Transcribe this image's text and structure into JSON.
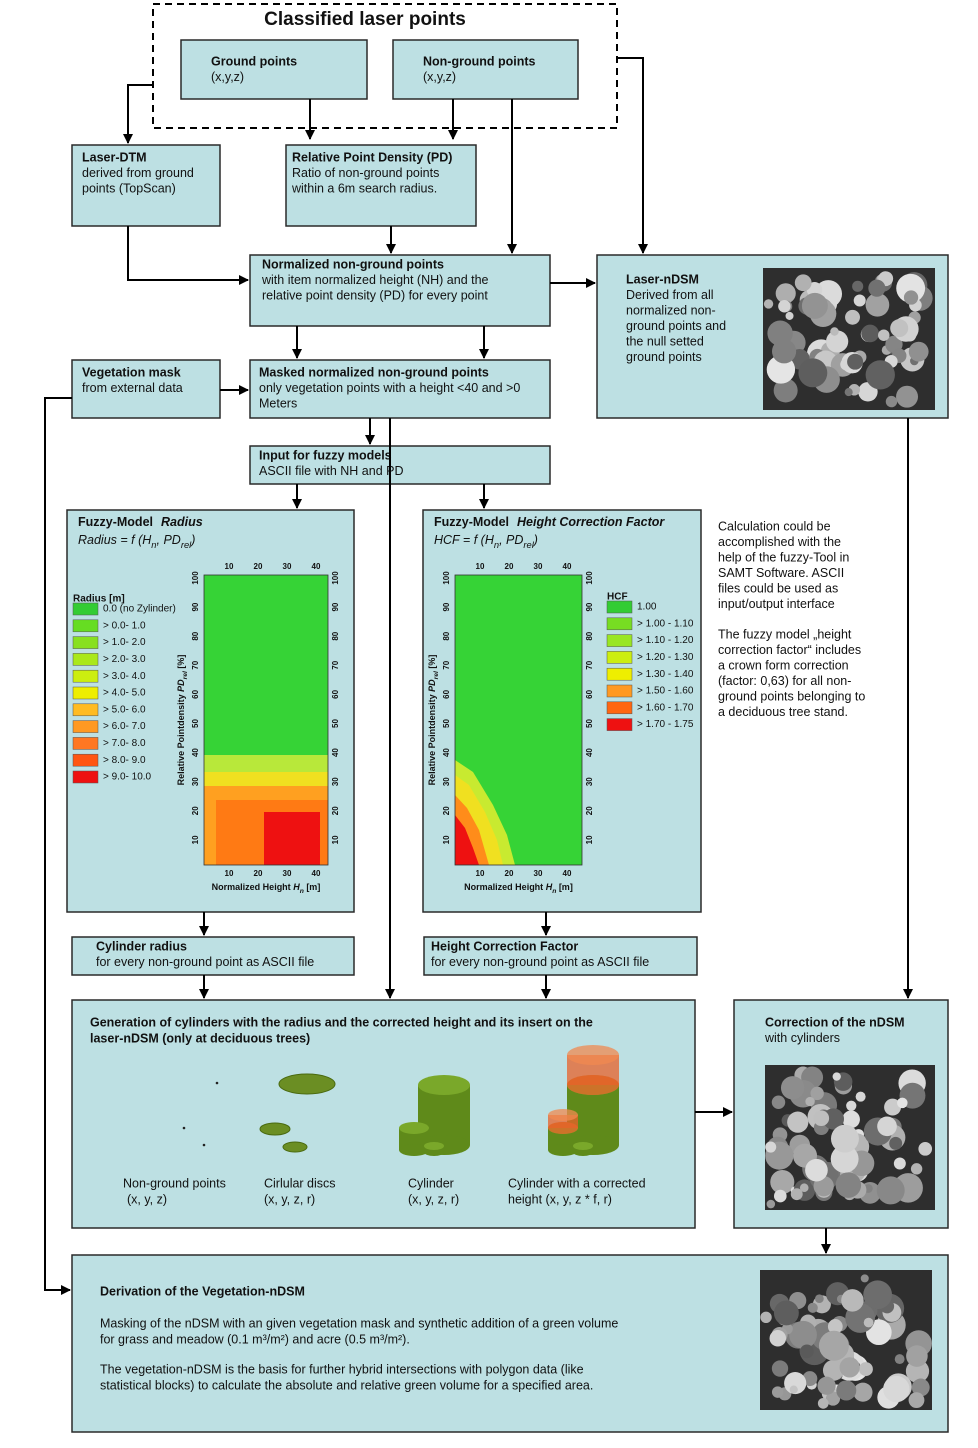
{
  "nodes": {
    "classified": {
      "title": "Classified laser points"
    },
    "ground": {
      "title": "Ground points",
      "lines": [
        "(x,y,z)"
      ]
    },
    "nonground": {
      "title": "Non-ground points",
      "lines": [
        "(x,y,z)"
      ]
    },
    "dtm": {
      "title": "Laser-DTM",
      "lines": [
        "derived  from  ground",
        "points  (TopScan)"
      ]
    },
    "pd": {
      "title": "Relative Point Density (PD)",
      "lines": [
        "Ratio of non-ground points",
        "within a 6m search radius."
      ]
    },
    "normalized": {
      "title": "Normalized non-ground points",
      "lines": [
        "with item normalized height (NH) and the",
        "relative point density (PD) for every point"
      ]
    },
    "ndsm": {
      "title": "Laser-nDSM",
      "lines": [
        "Derived from all",
        "normalized non-",
        "ground points and",
        "the null setted",
        "ground points"
      ]
    },
    "vegmask": {
      "title": "Vegetation mask",
      "lines": [
        "from external data"
      ]
    },
    "masked": {
      "title": "Masked normalized non-ground points",
      "lines": [
        "only vegetation points with a height <40 and >0",
        "Meters"
      ]
    },
    "input": {
      "title": "Input for fuzzy models",
      "lines": [
        "ASCII file with NH and PD"
      ]
    },
    "cylradius": {
      "title": "Cylinder radius",
      "lines": [
        "for every non-ground point as ASCII file"
      ]
    },
    "hcfbox": {
      "title": "Height Correction Factor",
      "lines": [
        "for every non-ground point as ASCII file"
      ]
    },
    "generation": {
      "title_lines": [
        "Generation of cylinders with the radius and the corrected height and its insert on the",
        "laser-nDSM (only at deciduous trees)"
      ],
      "captions": [
        [
          "Non-ground points",
          "(x, y, z)"
        ],
        [
          "Cirlular discs",
          "(x, y, z, r)"
        ],
        [
          "Cylinder",
          "(x, y, z, r)"
        ],
        [
          "Cylinder with a corrected",
          "height (x, y, z * f, r)"
        ]
      ]
    },
    "correction": {
      "title": "Correction of the nDSM",
      "lines": [
        "with cylinders"
      ]
    },
    "derivation": {
      "title": "Derivation of the Vegetation-nDSM",
      "paragraphs": [
        [
          "Masking of the nDSM with an given vegetation mask and synthetic addition of a green volume",
          "for grass and meadow (0.1 m³/m²) and acre (0.5 m³/m²)."
        ],
        [
          "The  vegetation-nDSM  is  the  basis  for  further  hybrid  intersections  with  polygon  data  (like",
          "statistical blocks) to calculate the absolute and relative green volume for a specified area."
        ]
      ]
    }
  },
  "fuzzy_radius": {
    "title": "Fuzzy-Model",
    "model": "Radius",
    "formula": [
      "Radius = f (H",
      "n",
      ", PD",
      "rel",
      ")"
    ],
    "legend_title": "Radius [m]",
    "legend": [
      "0.0 (no Zylinder)",
      "> 0.0- 1.0",
      "> 1.0- 2.0",
      "> 2.0- 3.0",
      "> 3.0- 4.0",
      "> 4.0- 5.0",
      "> 5.0- 6.0",
      "> 6.0- 7.0",
      "> 7.0- 8.0",
      "> 8.0- 9.0",
      "> 9.0- 10.0"
    ],
    "x_ticks": [
      "10",
      "20",
      "30",
      "40"
    ],
    "y_ticks": [
      "10",
      "20",
      "30",
      "40",
      "50",
      "60",
      "70",
      "80",
      "90",
      "100"
    ],
    "x_label": [
      "Normalized Height ",
      "H",
      "n",
      " [m]"
    ],
    "y_label": [
      "Relative Pointdensity  ",
      "PD",
      "rel",
      " [%]"
    ]
  },
  "fuzzy_hcf": {
    "title": "Fuzzy-Model",
    "model": "Height Correction Factor",
    "formula": [
      "HCF = f (H",
      "n",
      ", PD",
      "rel",
      ")"
    ],
    "legend_title": "HCF",
    "legend": [
      "1.00",
      "> 1.00 - 1.10",
      "> 1.10 - 1.20",
      "> 1.20 - 1.30",
      "> 1.30 - 1.40",
      "> 1.50 - 1.60",
      "> 1.60 - 1.70",
      "> 1.70 - 1.75"
    ],
    "x_ticks": [
      "10",
      "20",
      "30",
      "40"
    ],
    "y_ticks": [
      "10",
      "20",
      "30",
      "40",
      "50",
      "60",
      "70",
      "80",
      "90",
      "100"
    ],
    "x_label": [
      "Normalized Height ",
      "H",
      "n",
      " [m]"
    ],
    "y_label": [
      "Relative Pointdensity  ",
      "PD",
      "rel",
      " [%]"
    ]
  },
  "note": [
    [
      "Calculation could be",
      "accomplished with the",
      "help of the fuzzy-Tool in",
      "SAMT Software. ASCII",
      "files could be used as",
      "input/output interface"
    ],
    [
      "The fuzzy model „height",
      "correction factor“ includes",
      "a  crown form correction",
      "(factor: 0,63) for all non-",
      "ground points belonging to",
      "a deciduous tree stand."
    ]
  ]
}
